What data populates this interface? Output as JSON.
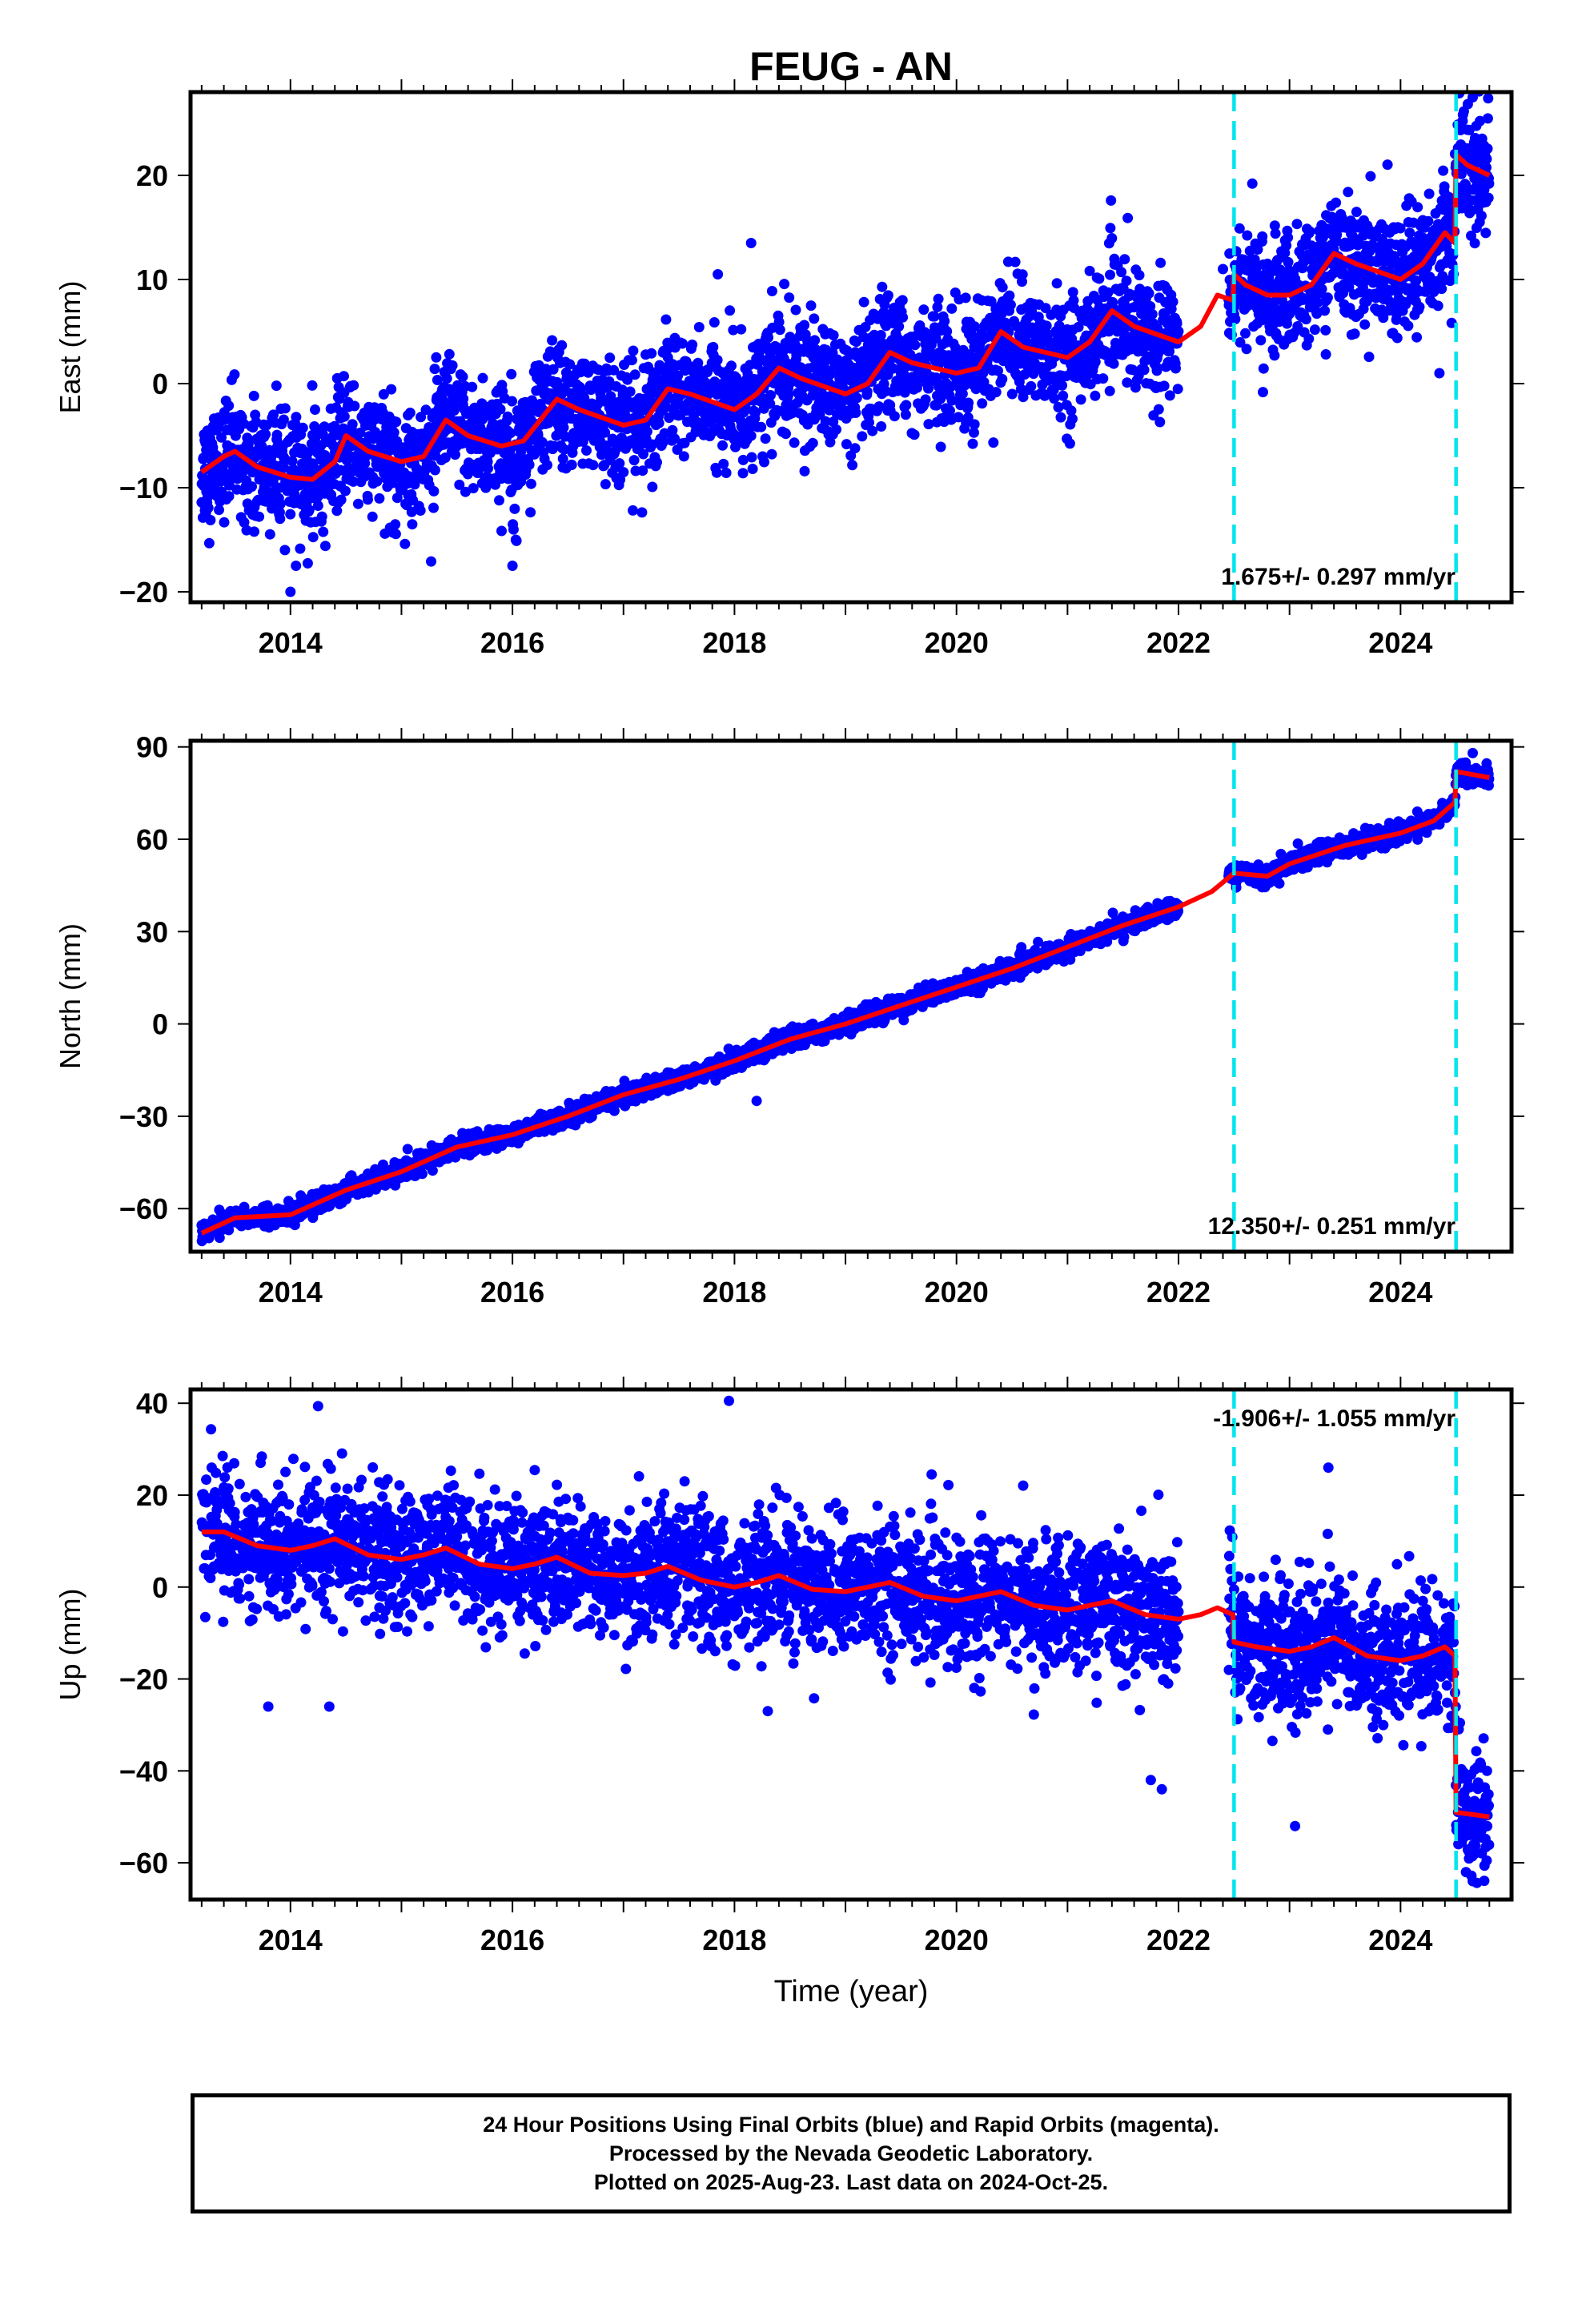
{
  "title": "FEUG - AN",
  "footer": {
    "lines": [
      "24 Hour Positions Using Final Orbits (blue) and Rapid Orbits (magenta).",
      "Processed by the Nevada Geodetic Laboratory.",
      "Plotted on 2025-Aug-23. Last data on 2024-Oct-25."
    ]
  },
  "colors": {
    "points": "#0000ff",
    "model": "#ff0000",
    "breaks": "#00e5ee"
  },
  "chart_data": [
    {
      "type": "scatter",
      "ylabel": "East (mm)",
      "xlabel": "",
      "xlim": [
        2013.1,
        2025.0
      ],
      "ylim": [
        -21,
        28
      ],
      "xticks": [
        2014,
        2016,
        2018,
        2020,
        2022,
        2024
      ],
      "yticks": [
        -20,
        -10,
        0,
        10,
        20
      ],
      "rate_label": "1.675+/- 0.297 mm/yr",
      "rate_position": "bottom-right",
      "breaks": [
        2022.5,
        2024.5
      ],
      "noise": 2.8,
      "gap": [
        2022.0,
        2022.45
      ],
      "model": [
        [
          2013.2,
          -8.5
        ],
        [
          2013.4,
          -7.0
        ],
        [
          2013.5,
          -6.5
        ],
        [
          2013.7,
          -8.0
        ],
        [
          2014.0,
          -9.0
        ],
        [
          2014.2,
          -9.2
        ],
        [
          2014.4,
          -7.5
        ],
        [
          2014.5,
          -5.0
        ],
        [
          2014.7,
          -6.5
        ],
        [
          2015.0,
          -7.5
        ],
        [
          2015.2,
          -7.0
        ],
        [
          2015.4,
          -3.5
        ],
        [
          2015.6,
          -5.0
        ],
        [
          2015.9,
          -6.0
        ],
        [
          2016.1,
          -5.5
        ],
        [
          2016.4,
          -1.5
        ],
        [
          2016.6,
          -2.5
        ],
        [
          2017.0,
          -4.0
        ],
        [
          2017.2,
          -3.5
        ],
        [
          2017.4,
          -0.5
        ],
        [
          2017.6,
          -1.0
        ],
        [
          2018.0,
          -2.5
        ],
        [
          2018.2,
          -1.0
        ],
        [
          2018.4,
          1.5
        ],
        [
          2018.6,
          0.5
        ],
        [
          2019.0,
          -1.0
        ],
        [
          2019.2,
          0.0
        ],
        [
          2019.4,
          3.0
        ],
        [
          2019.6,
          2.0
        ],
        [
          2020.0,
          1.0
        ],
        [
          2020.2,
          1.5
        ],
        [
          2020.4,
          5.0
        ],
        [
          2020.6,
          3.5
        ],
        [
          2021.0,
          2.5
        ],
        [
          2021.2,
          4.0
        ],
        [
          2021.4,
          7.0
        ],
        [
          2021.6,
          5.5
        ],
        [
          2022.0,
          4.0
        ],
        [
          2022.2,
          5.5
        ],
        [
          2022.35,
          8.5
        ],
        [
          2022.49,
          8.0
        ],
        [
          2022.5,
          10.5
        ],
        [
          2022.6,
          9.5
        ],
        [
          2022.8,
          8.5
        ],
        [
          2023.0,
          8.5
        ],
        [
          2023.2,
          9.5
        ],
        [
          2023.4,
          12.5
        ],
        [
          2023.6,
          11.5
        ],
        [
          2024.0,
          10.0
        ],
        [
          2024.2,
          11.5
        ],
        [
          2024.4,
          14.5
        ],
        [
          2024.49,
          13.5
        ],
        [
          2024.5,
          22.0
        ],
        [
          2024.6,
          21.0
        ],
        [
          2024.8,
          20.0
        ]
      ],
      "outliers": [
        [
          2014.0,
          -20.0
        ],
        [
          2014.05,
          -17.5
        ],
        [
          2016.0,
          -17.5
        ],
        [
          2016.03,
          -15.0
        ],
        [
          2017.85,
          10.5
        ],
        [
          2018.15,
          13.5
        ],
        [
          2022.4,
          11.0
        ],
        [
          2024.65,
          27.5
        ],
        [
          2024.35,
          1.0
        ]
      ]
    },
    {
      "type": "scatter",
      "ylabel": "North (mm)",
      "xlabel": "",
      "xlim": [
        2013.1,
        2025.0
      ],
      "ylim": [
        -74,
        92
      ],
      "xticks": [
        2014,
        2016,
        2018,
        2020,
        2022,
        2024
      ],
      "yticks": [
        -60,
        -30,
        0,
        30,
        60,
        90
      ],
      "rate_label": "12.350+/- 0.251 mm/yr",
      "rate_position": "bottom-right",
      "breaks": [
        2022.5,
        2024.5
      ],
      "noise": 1.5,
      "gap": [
        2022.0,
        2022.45
      ],
      "model": [
        [
          2013.2,
          -68
        ],
        [
          2013.5,
          -63
        ],
        [
          2014.0,
          -62
        ],
        [
          2014.5,
          -54
        ],
        [
          2015.0,
          -48
        ],
        [
          2015.5,
          -40
        ],
        [
          2016.0,
          -36
        ],
        [
          2016.5,
          -30
        ],
        [
          2017.0,
          -23
        ],
        [
          2017.5,
          -18
        ],
        [
          2018.0,
          -12
        ],
        [
          2018.5,
          -5
        ],
        [
          2019.0,
          0
        ],
        [
          2019.5,
          6
        ],
        [
          2020.0,
          12
        ],
        [
          2020.5,
          18
        ],
        [
          2021.0,
          25
        ],
        [
          2021.5,
          32
        ],
        [
          2022.0,
          38
        ],
        [
          2022.3,
          43
        ],
        [
          2022.5,
          49
        ],
        [
          2022.8,
          48
        ],
        [
          2023.0,
          52
        ],
        [
          2023.5,
          58
        ],
        [
          2024.0,
          62
        ],
        [
          2024.3,
          66
        ],
        [
          2024.49,
          72
        ],
        [
          2024.5,
          82
        ],
        [
          2024.8,
          80
        ]
      ],
      "outliers": [
        [
          2018.2,
          -25
        ],
        [
          2024.65,
          88
        ]
      ]
    },
    {
      "type": "scatter",
      "ylabel": "Up (mm)",
      "xlabel": "Time (year)",
      "xlim": [
        2013.1,
        2025.0
      ],
      "ylim": [
        -68,
        43
      ],
      "xticks": [
        2014,
        2016,
        2018,
        2020,
        2022,
        2024
      ],
      "yticks": [
        -60,
        -40,
        -20,
        0,
        20,
        40
      ],
      "rate_label": "-1.906+/- 1.055 mm/yr",
      "rate_position": "top-right",
      "breaks": [
        2022.5,
        2024.5
      ],
      "noise": 7.0,
      "gap": [
        2022.0,
        2022.45
      ],
      "model": [
        [
          2013.2,
          12
        ],
        [
          2013.4,
          12
        ],
        [
          2013.7,
          9
        ],
        [
          2014.0,
          8
        ],
        [
          2014.2,
          9
        ],
        [
          2014.4,
          10.5
        ],
        [
          2014.7,
          7
        ],
        [
          2015.0,
          6
        ],
        [
          2015.2,
          7
        ],
        [
          2015.4,
          8.5
        ],
        [
          2015.7,
          5
        ],
        [
          2016.0,
          4
        ],
        [
          2016.2,
          5
        ],
        [
          2016.4,
          6.5
        ],
        [
          2016.7,
          3
        ],
        [
          2017.0,
          2.5
        ],
        [
          2017.2,
          3
        ],
        [
          2017.4,
          4.5
        ],
        [
          2017.7,
          1.5
        ],
        [
          2018.0,
          0
        ],
        [
          2018.2,
          1
        ],
        [
          2018.4,
          2.5
        ],
        [
          2018.7,
          -0.5
        ],
        [
          2019.0,
          -1
        ],
        [
          2019.2,
          0
        ],
        [
          2019.4,
          1
        ],
        [
          2019.7,
          -2
        ],
        [
          2020.0,
          -3
        ],
        [
          2020.2,
          -2
        ],
        [
          2020.4,
          -1
        ],
        [
          2020.7,
          -4
        ],
        [
          2021.0,
          -5
        ],
        [
          2021.2,
          -4
        ],
        [
          2021.4,
          -3
        ],
        [
          2021.7,
          -6
        ],
        [
          2022.0,
          -7
        ],
        [
          2022.2,
          -6
        ],
        [
          2022.35,
          -4.5
        ],
        [
          2022.49,
          -6
        ],
        [
          2022.5,
          -12
        ],
        [
          2022.7,
          -13
        ],
        [
          2023.0,
          -14
        ],
        [
          2023.2,
          -13
        ],
        [
          2023.4,
          -11
        ],
        [
          2023.7,
          -15
        ],
        [
          2024.0,
          -16
        ],
        [
          2024.2,
          -15
        ],
        [
          2024.4,
          -13
        ],
        [
          2024.49,
          -15
        ],
        [
          2024.5,
          -49
        ],
        [
          2024.8,
          -50
        ]
      ],
      "outliers": [
        [
          2017.95,
          40.5
        ],
        [
          2013.8,
          -26
        ],
        [
          2014.35,
          -26
        ],
        [
          2018.3,
          -27
        ],
        [
          2021.75,
          -42
        ],
        [
          2021.85,
          -44
        ],
        [
          2023.05,
          -52
        ],
        [
          2023.35,
          26
        ],
        [
          2024.65,
          -64
        ]
      ]
    }
  ]
}
